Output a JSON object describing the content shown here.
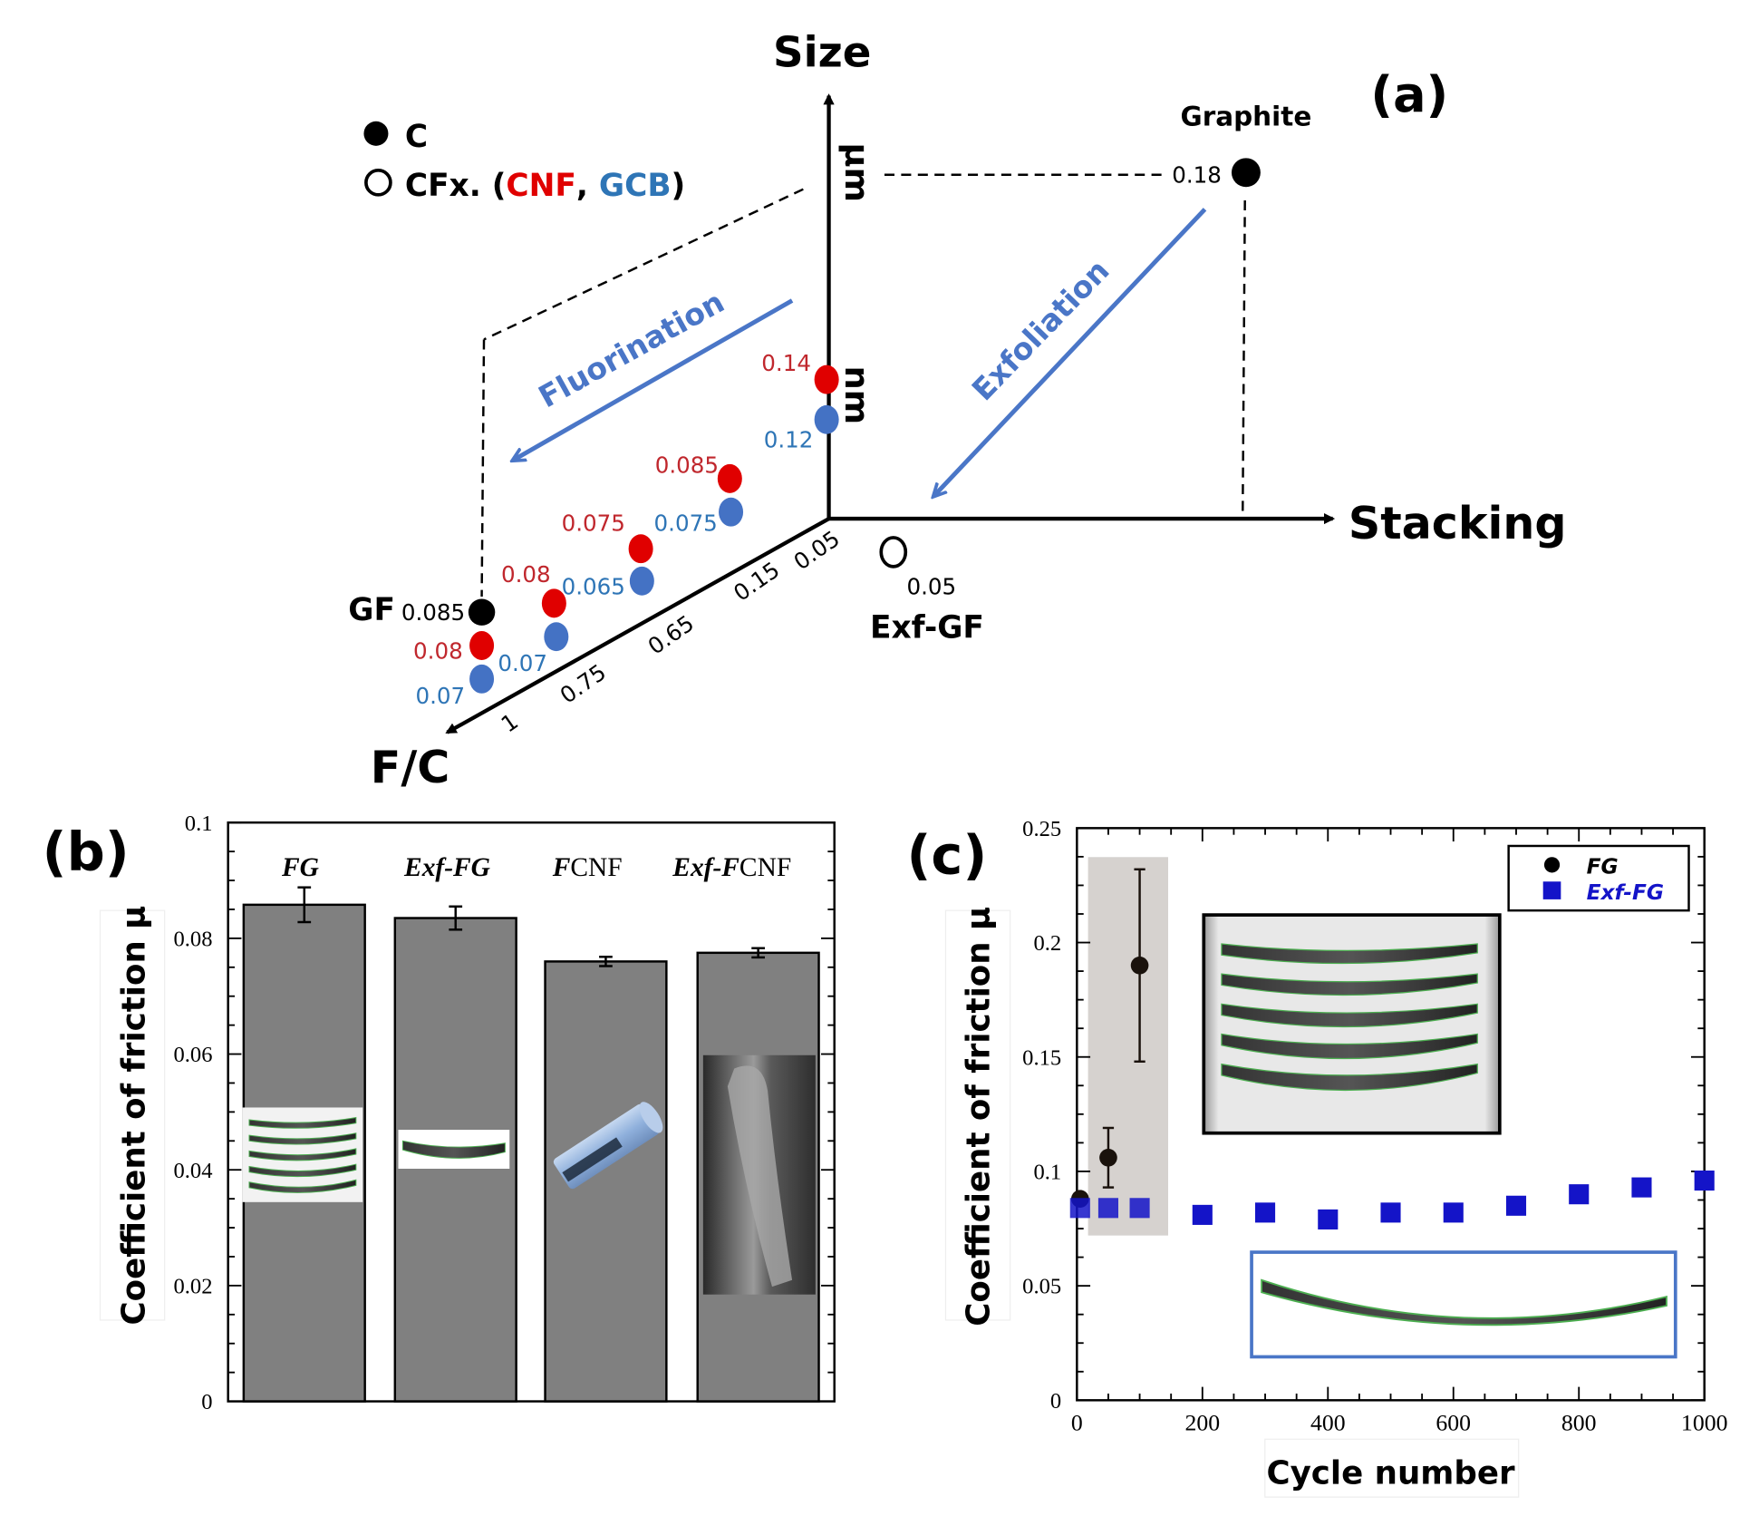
{
  "panel_labels": {
    "a": "(a)",
    "b": "(b)",
    "c": "(c)"
  },
  "colors": {
    "cnf": "#e00000",
    "gcb": "#4472c4",
    "cnf_text": "#c0272d",
    "gcb_text": "#2e75b6",
    "arrow": "#4a76c7",
    "bar": "#808080",
    "exf_fg": "#1414c8",
    "fg": "#1a120c",
    "shade": "#d6d2cf"
  },
  "chart_data": [
    {
      "type": "diagram",
      "axes": {
        "size": "Size",
        "stacking": "Stacking",
        "fc": "F/C",
        "um": "µm",
        "nm": "nm"
      },
      "legend": {
        "c": "C",
        "cfx_prefix": "CFx. (",
        "cnf": "CNF",
        "sep": ", ",
        "gcb": "GCB",
        "suffix": ")"
      },
      "arrows": {
        "fluorination": "Fluorination",
        "exfoliation": "Exfoliation"
      },
      "fc_ticks": [
        "0.05",
        "0.15",
        "0.65",
        "0.75",
        "1"
      ],
      "graphite": {
        "label": "Graphite",
        "value": "0.18"
      },
      "exf_gf": {
        "label": "Exf-GF",
        "value": "0.05"
      },
      "gf": {
        "label": "GF",
        "value": "0.085"
      },
      "points": [
        {
          "material": "CNF",
          "value": "0.14"
        },
        {
          "material": "GCB",
          "value": "0.12"
        },
        {
          "material": "CNF",
          "value": "0.085"
        },
        {
          "material": "GCB",
          "value": "0.075"
        },
        {
          "material": "CNF",
          "value": "0.075"
        },
        {
          "material": "GCB",
          "value": "0.065"
        },
        {
          "material": "CNF",
          "value": "0.08"
        },
        {
          "material": "GCB",
          "value": "0.07"
        },
        {
          "material": "CNF",
          "value": "0.08"
        },
        {
          "material": "GCB",
          "value": "0.07"
        }
      ]
    },
    {
      "type": "bar",
      "categories": [
        "FG",
        "Exf-FG",
        "FCNF",
        "Exf-FCNF"
      ],
      "category_labels": [
        {
          "italic": "FG",
          "plain": ""
        },
        {
          "italic": "Exf-FG",
          "plain": ""
        },
        {
          "italic": "F",
          "plain": "CNF"
        },
        {
          "italic": "Exf-F",
          "plain": "CNF"
        }
      ],
      "values": [
        0.0858,
        0.0835,
        0.076,
        0.0775
      ],
      "errors": [
        0.003,
        0.002,
        0.0008,
        0.0008
      ],
      "ylabel": "Coefficient of friction µ",
      "ylim": [
        0,
        0.1
      ],
      "yticks": [
        "0",
        "0.02",
        "0.04",
        "0.06",
        "0.08",
        "0.1"
      ]
    },
    {
      "type": "scatter",
      "xlabel": "Cycle number",
      "ylabel": "Coefficient of friction µ",
      "xlim": [
        0,
        1000
      ],
      "ylim": [
        0,
        0.25
      ],
      "xticks": [
        "0",
        "200",
        "400",
        "600",
        "800",
        "1000"
      ],
      "yticks": [
        "0",
        "0.05",
        "0.1",
        "0.15",
        "0.2",
        "0.25"
      ],
      "legend_position": "top-right",
      "series": [
        {
          "name": "FG",
          "marker": "circle",
          "x": [
            5,
            50,
            100
          ],
          "y": [
            0.088,
            0.106,
            0.19
          ],
          "errors": [
            0,
            0.013,
            0.042
          ]
        },
        {
          "name": "Exf-FG",
          "marker": "square",
          "x": [
            5,
            50,
            100,
            200,
            300,
            400,
            500,
            600,
            700,
            800,
            900,
            1000
          ],
          "y": [
            0.084,
            0.084,
            0.084,
            0.081,
            0.082,
            0.079,
            0.082,
            0.082,
            0.085,
            0.09,
            0.093,
            0.096
          ]
        }
      ]
    }
  ]
}
